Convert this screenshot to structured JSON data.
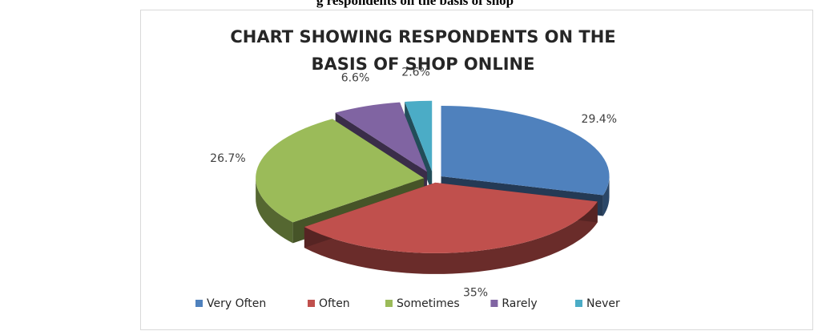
{
  "top_caption": "g respondents on the basis of shop",
  "chart_data": {
    "type": "pie",
    "title_lines": [
      "CHART SHOWING RESPONDENTS ON THE",
      "BASIS OF SHOP ONLINE"
    ],
    "categories": [
      "Very Often",
      "Often",
      "Sometimes",
      "Rarely",
      "Never"
    ],
    "values": [
      29.4,
      35,
      26.7,
      6.6,
      2.6
    ],
    "data_labels": [
      "29.4%",
      "35%",
      "26.7%",
      "6.6%",
      "2.6%"
    ],
    "legend_labels": [
      "Very Often",
      "Often",
      "Sometimes",
      "Rarely",
      "Never"
    ],
    "colors": [
      "#4f81bd",
      "#c0504d",
      "#9bbb59",
      "#8064a2",
      "#4bacc6"
    ],
    "exploded": true,
    "three_d": true,
    "legend_position": "bottom"
  }
}
